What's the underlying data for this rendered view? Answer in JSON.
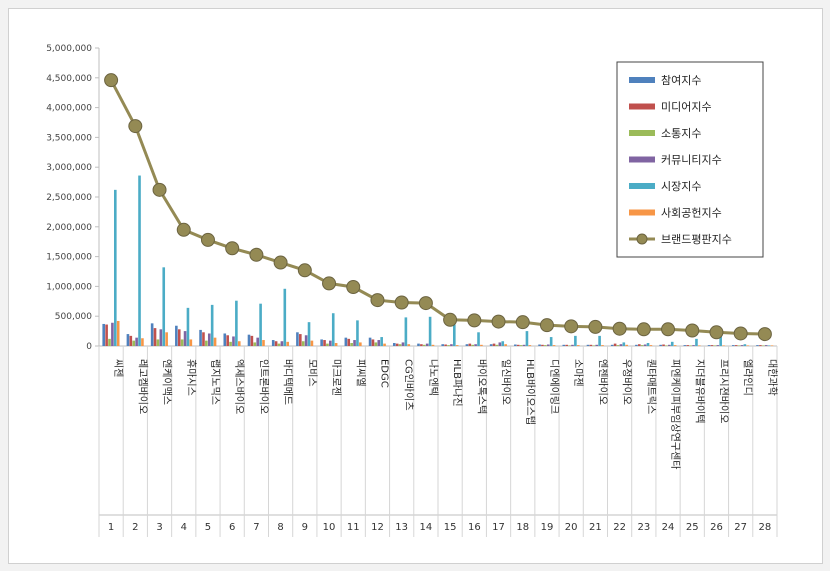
{
  "chart_data": {
    "type": "bar",
    "yticks": [
      "0",
      "500,000",
      "1,000,000",
      "1,500,000",
      "2,000,000",
      "2,500,000",
      "3,000,000",
      "3,500,000",
      "4,000,000",
      "4,500,000",
      "5,000,000"
    ],
    "ylim": [
      0,
      5000000
    ],
    "grid": false,
    "legend_position": "top-right",
    "ranks": [
      "1",
      "2",
      "3",
      "4",
      "5",
      "6",
      "7",
      "8",
      "9",
      "10",
      "11",
      "12",
      "13",
      "14",
      "15",
      "16",
      "17",
      "18",
      "19",
      "20",
      "21",
      "22",
      "23",
      "24",
      "25",
      "26",
      "27",
      "28"
    ],
    "categories": [
      "씨젠",
      "레고켐바이오",
      "엔케이맥스",
      "휴마시스",
      "랩지노믹스",
      "엑세스바이오",
      "인트론바이오",
      "바디텍메드",
      "모비스",
      "마크로젠",
      "피씨엘",
      "EDGC",
      "CG인바이츠",
      "나노엔텍",
      "HLB파나진",
      "바이오톡스텍",
      "일신바이오",
      "HLB바이오스텝",
      "디엔에이링크",
      "소마젠",
      "엔젠바이오",
      "우정바이오",
      "퀀타매트릭스",
      "피엔케이피부임상연구센타",
      "지더블유바이텍",
      "프리시젼바이오",
      "엘라인디",
      "대한과학"
    ],
    "series": [
      {
        "name": "참여지수",
        "color": "#4f81bd",
        "values": [
          370000,
          200000,
          380000,
          340000,
          270000,
          210000,
          190000,
          100000,
          230000,
          110000,
          140000,
          140000,
          50000,
          40000,
          30000,
          30000,
          30000,
          25000,
          25000,
          20000,
          20000,
          20000,
          20000,
          20000,
          15000,
          15000,
          15000,
          15000
        ]
      },
      {
        "name": "미디어지수",
        "color": "#c0504d",
        "values": [
          360000,
          170000,
          300000,
          280000,
          230000,
          180000,
          170000,
          80000,
          200000,
          100000,
          120000,
          110000,
          40000,
          30000,
          25000,
          40000,
          40000,
          20000,
          20000,
          20000,
          20000,
          40000,
          30000,
          25000,
          15000,
          15000,
          15000,
          15000
        ]
      },
      {
        "name": "소통지수",
        "color": "#9bbb59",
        "values": [
          120000,
          90000,
          110000,
          110000,
          90000,
          70000,
          60000,
          40000,
          80000,
          40000,
          50000,
          60000,
          30000,
          20000,
          15000,
          20000,
          20000,
          15000,
          15000,
          10000,
          10000,
          15000,
          15000,
          10000,
          10000,
          10000,
          10000,
          10000
        ]
      },
      {
        "name": "커뮤니티지수",
        "color": "#8064a2",
        "values": [
          390000,
          140000,
          280000,
          250000,
          210000,
          160000,
          140000,
          80000,
          180000,
          90000,
          100000,
          100000,
          60000,
          40000,
          30000,
          30000,
          60000,
          20000,
          25000,
          20000,
          20000,
          30000,
          25000,
          20000,
          15000,
          15000,
          15000,
          15000
        ]
      },
      {
        "name": "시장지수",
        "color": "#4bacc6",
        "values": [
          2620000,
          2860000,
          1320000,
          640000,
          690000,
          760000,
          710000,
          960000,
          400000,
          550000,
          430000,
          150000,
          480000,
          490000,
          360000,
          230000,
          80000,
          250000,
          150000,
          170000,
          170000,
          60000,
          50000,
          70000,
          120000,
          180000,
          30000,
          10000
        ]
      },
      {
        "name": "사회공헌지수",
        "color": "#f79646",
        "values": [
          420000,
          130000,
          230000,
          110000,
          140000,
          80000,
          100000,
          70000,
          90000,
          50000,
          60000,
          40000,
          30000,
          20000,
          15000,
          20000,
          30000,
          15000,
          15000,
          15000,
          15000,
          20000,
          15000,
          15000,
          10000,
          10000,
          10000,
          10000
        ]
      },
      {
        "name": "브랜드평판지수",
        "color": "#948a54",
        "type": "line",
        "values": [
          4460000,
          3690000,
          2620000,
          1950000,
          1780000,
          1640000,
          1530000,
          1400000,
          1270000,
          1050000,
          990000,
          770000,
          730000,
          720000,
          440000,
          430000,
          410000,
          400000,
          350000,
          330000,
          320000,
          290000,
          280000,
          280000,
          260000,
          230000,
          210000,
          200000
        ]
      }
    ]
  }
}
